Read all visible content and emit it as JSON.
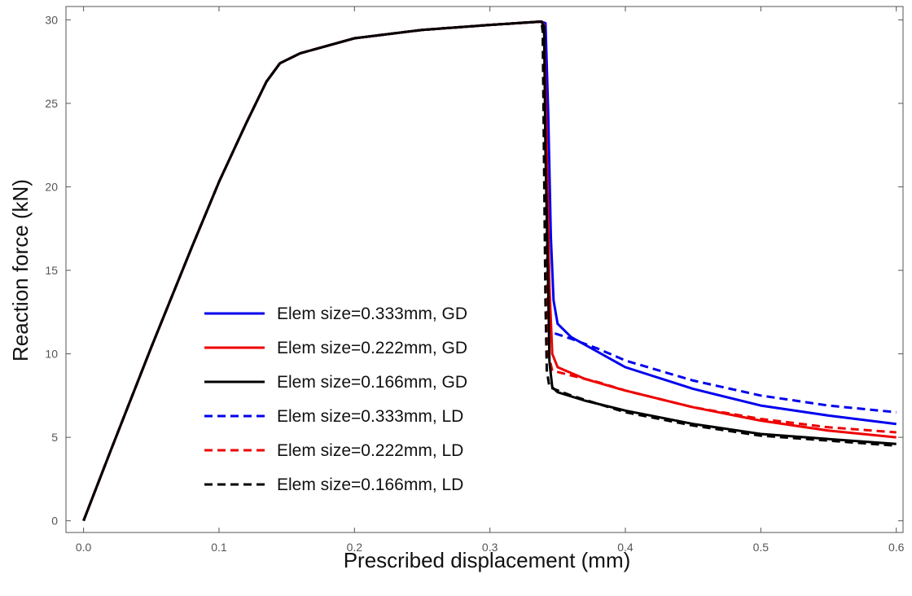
{
  "chart_data": {
    "type": "line",
    "title": "",
    "xlabel": "Prescribed displacement (mm)",
    "ylabel": "Reaction force (kN)",
    "xlim": [
      -0.013,
      0.605
    ],
    "ylim": [
      -0.7,
      30.8
    ],
    "xticks": [
      0.0,
      0.1,
      0.2,
      0.3,
      0.4,
      0.5,
      0.6
    ],
    "xtick_labels": [
      "0.0",
      "0.1",
      "0.2",
      "0.3",
      "0.4",
      "0.5",
      "0.6"
    ],
    "yticks": [
      0,
      5,
      10,
      15,
      20,
      25,
      30
    ],
    "ytick_labels": [
      "0",
      "5",
      "10",
      "15",
      "20",
      "25",
      "30"
    ],
    "grid": false,
    "legend_position": "center-left",
    "series": [
      {
        "name": "Elem size=0.333mm, GD",
        "color": "#0000ee",
        "dash": "solid",
        "points": [
          [
            0,
            0
          ],
          [
            0.02,
            4.2
          ],
          [
            0.05,
            10.4
          ],
          [
            0.08,
            16.4
          ],
          [
            0.1,
            20.3
          ],
          [
            0.12,
            23.8
          ],
          [
            0.135,
            26.3
          ],
          [
            0.145,
            27.4
          ],
          [
            0.16,
            28.0
          ],
          [
            0.2,
            28.9
          ],
          [
            0.25,
            29.4
          ],
          [
            0.3,
            29.7
          ],
          [
            0.338,
            29.9
          ],
          [
            0.341,
            29.8
          ],
          [
            0.343,
            24.5
          ],
          [
            0.345,
            17.0
          ],
          [
            0.347,
            13.2
          ],
          [
            0.35,
            11.8
          ],
          [
            0.36,
            11.0
          ],
          [
            0.38,
            10.1
          ],
          [
            0.4,
            9.2
          ],
          [
            0.45,
            7.9
          ],
          [
            0.5,
            6.9
          ],
          [
            0.55,
            6.3
          ],
          [
            0.6,
            5.8
          ]
        ]
      },
      {
        "name": "Elem size=0.222mm, GD",
        "color": "#ee0000",
        "dash": "solid",
        "points": [
          [
            0,
            0
          ],
          [
            0.02,
            4.2
          ],
          [
            0.05,
            10.4
          ],
          [
            0.08,
            16.4
          ],
          [
            0.1,
            20.3
          ],
          [
            0.12,
            23.8
          ],
          [
            0.135,
            26.3
          ],
          [
            0.145,
            27.4
          ],
          [
            0.16,
            28.0
          ],
          [
            0.2,
            28.9
          ],
          [
            0.25,
            29.4
          ],
          [
            0.3,
            29.7
          ],
          [
            0.338,
            29.9
          ],
          [
            0.34,
            29.7
          ],
          [
            0.342,
            22.0
          ],
          [
            0.344,
            14.0
          ],
          [
            0.346,
            10.0
          ],
          [
            0.35,
            9.2
          ],
          [
            0.37,
            8.5
          ],
          [
            0.4,
            7.8
          ],
          [
            0.45,
            6.8
          ],
          [
            0.5,
            6.0
          ],
          [
            0.55,
            5.4
          ],
          [
            0.6,
            5.0
          ]
        ]
      },
      {
        "name": "Elem size=0.166mm, GD",
        "color": "#000000",
        "dash": "solid",
        "points": [
          [
            0,
            0
          ],
          [
            0.02,
            4.2
          ],
          [
            0.05,
            10.4
          ],
          [
            0.08,
            16.4
          ],
          [
            0.1,
            20.3
          ],
          [
            0.12,
            23.8
          ],
          [
            0.135,
            26.3
          ],
          [
            0.145,
            27.4
          ],
          [
            0.16,
            28.0
          ],
          [
            0.2,
            28.9
          ],
          [
            0.25,
            29.4
          ],
          [
            0.3,
            29.7
          ],
          [
            0.338,
            29.9
          ],
          [
            0.34,
            29.6
          ],
          [
            0.341,
            22.0
          ],
          [
            0.343,
            14.0
          ],
          [
            0.344,
            9.5
          ],
          [
            0.346,
            8.0
          ],
          [
            0.35,
            7.7
          ],
          [
            0.37,
            7.2
          ],
          [
            0.4,
            6.6
          ],
          [
            0.45,
            5.8
          ],
          [
            0.5,
            5.2
          ],
          [
            0.55,
            4.9
          ],
          [
            0.6,
            4.6
          ]
        ]
      },
      {
        "name": "Elem size=0.333mm, LD",
        "color": "#0000ee",
        "dash": "dashed",
        "points": [
          [
            0,
            0
          ],
          [
            0.02,
            4.2
          ],
          [
            0.05,
            10.4
          ],
          [
            0.08,
            16.4
          ],
          [
            0.1,
            20.3
          ],
          [
            0.12,
            23.8
          ],
          [
            0.135,
            26.3
          ],
          [
            0.145,
            27.4
          ],
          [
            0.16,
            28.0
          ],
          [
            0.2,
            28.9
          ],
          [
            0.25,
            29.4
          ],
          [
            0.3,
            29.7
          ],
          [
            0.338,
            29.9
          ],
          [
            0.34,
            29.7
          ],
          [
            0.341,
            24.0
          ],
          [
            0.342,
            16.0
          ],
          [
            0.343,
            12.0
          ],
          [
            0.345,
            11.3
          ],
          [
            0.36,
            10.9
          ],
          [
            0.38,
            10.3
          ],
          [
            0.4,
            9.6
          ],
          [
            0.45,
            8.4
          ],
          [
            0.5,
            7.5
          ],
          [
            0.55,
            6.9
          ],
          [
            0.6,
            6.5
          ]
        ]
      },
      {
        "name": "Elem size=0.222mm, LD",
        "color": "#ee0000",
        "dash": "dashed",
        "points": [
          [
            0,
            0
          ],
          [
            0.02,
            4.2
          ],
          [
            0.05,
            10.4
          ],
          [
            0.08,
            16.4
          ],
          [
            0.1,
            20.3
          ],
          [
            0.12,
            23.8
          ],
          [
            0.135,
            26.3
          ],
          [
            0.145,
            27.4
          ],
          [
            0.16,
            28.0
          ],
          [
            0.2,
            28.9
          ],
          [
            0.25,
            29.4
          ],
          [
            0.3,
            29.7
          ],
          [
            0.338,
            29.9
          ],
          [
            0.34,
            29.5
          ],
          [
            0.341,
            22.0
          ],
          [
            0.342,
            14.0
          ],
          [
            0.343,
            10.0
          ],
          [
            0.346,
            9.0
          ],
          [
            0.36,
            8.7
          ],
          [
            0.38,
            8.3
          ],
          [
            0.4,
            7.8
          ],
          [
            0.45,
            6.8
          ],
          [
            0.5,
            6.1
          ],
          [
            0.55,
            5.6
          ],
          [
            0.6,
            5.3
          ]
        ]
      },
      {
        "name": "Elem size=0.166mm, LD",
        "color": "#000000",
        "dash": "dashed",
        "points": [
          [
            0,
            0
          ],
          [
            0.02,
            4.2
          ],
          [
            0.05,
            10.4
          ],
          [
            0.08,
            16.4
          ],
          [
            0.1,
            20.3
          ],
          [
            0.12,
            23.8
          ],
          [
            0.135,
            26.3
          ],
          [
            0.145,
            27.4
          ],
          [
            0.16,
            28.0
          ],
          [
            0.2,
            28.9
          ],
          [
            0.25,
            29.4
          ],
          [
            0.3,
            29.7
          ],
          [
            0.338,
            29.9
          ],
          [
            0.339,
            29.3
          ],
          [
            0.34,
            21.0
          ],
          [
            0.341,
            13.0
          ],
          [
            0.342,
            9.0
          ],
          [
            0.344,
            8.0
          ],
          [
            0.36,
            7.5
          ],
          [
            0.38,
            7.0
          ],
          [
            0.4,
            6.5
          ],
          [
            0.45,
            5.7
          ],
          [
            0.5,
            5.1
          ],
          [
            0.55,
            4.8
          ],
          [
            0.6,
            4.5
          ]
        ]
      }
    ]
  }
}
